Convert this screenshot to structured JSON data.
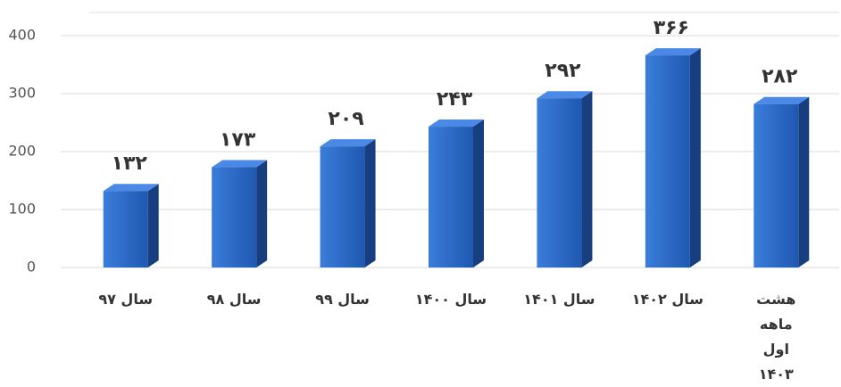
{
  "chart_data": {
    "type": "bar",
    "categories": [
      "سال ۹۷",
      "سال ۹۸",
      "سال ۹۹",
      "سال ۱۴۰۰",
      "سال ۱۴۰۱",
      "سال ۱۴۰۲",
      "هشت ماهه اول ۱۴۰۳"
    ],
    "values": [
      132,
      173,
      209,
      243,
      292,
      366,
      282
    ],
    "value_labels": [
      "۱۳۲",
      "۱۷۳",
      "۲۰۹",
      "۲۴۳",
      "۲۹۲",
      "۳۶۶",
      "۲۸۲"
    ],
    "color": "#2a66c4",
    "ylim": [
      0,
      440
    ],
    "yticks": [
      0,
      100,
      200,
      300,
      400
    ],
    "grid": true
  }
}
